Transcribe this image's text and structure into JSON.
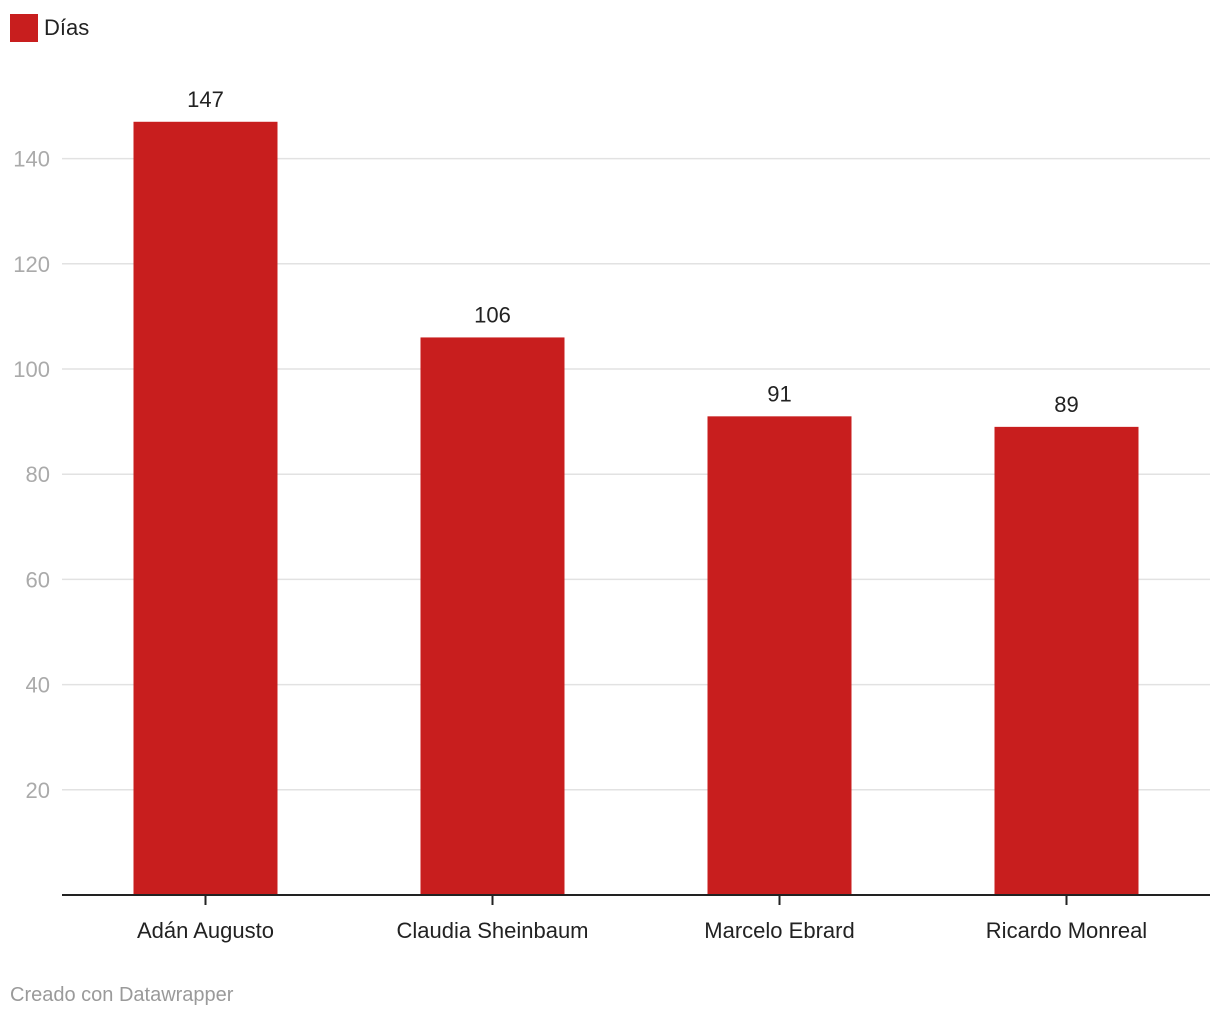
{
  "legend": {
    "label": "Días",
    "color": "#c81e1e"
  },
  "credit": "Creado con Datawrapper",
  "chart_data": {
    "type": "bar",
    "categories": [
      "Adán Augusto",
      "Claudia Sheinbaum",
      "Marcelo Ebrard",
      "Ricardo Monreal"
    ],
    "series": [
      {
        "name": "Días",
        "values": [
          147,
          106,
          91,
          89
        ],
        "color": "#c81e1e"
      }
    ],
    "ylim": [
      0,
      147
    ],
    "yticks": [
      20,
      40,
      60,
      80,
      100,
      120,
      140
    ],
    "grid": true,
    "legend_position": "top-left",
    "data_labels": [
      "147",
      "106",
      "91",
      "89"
    ]
  }
}
